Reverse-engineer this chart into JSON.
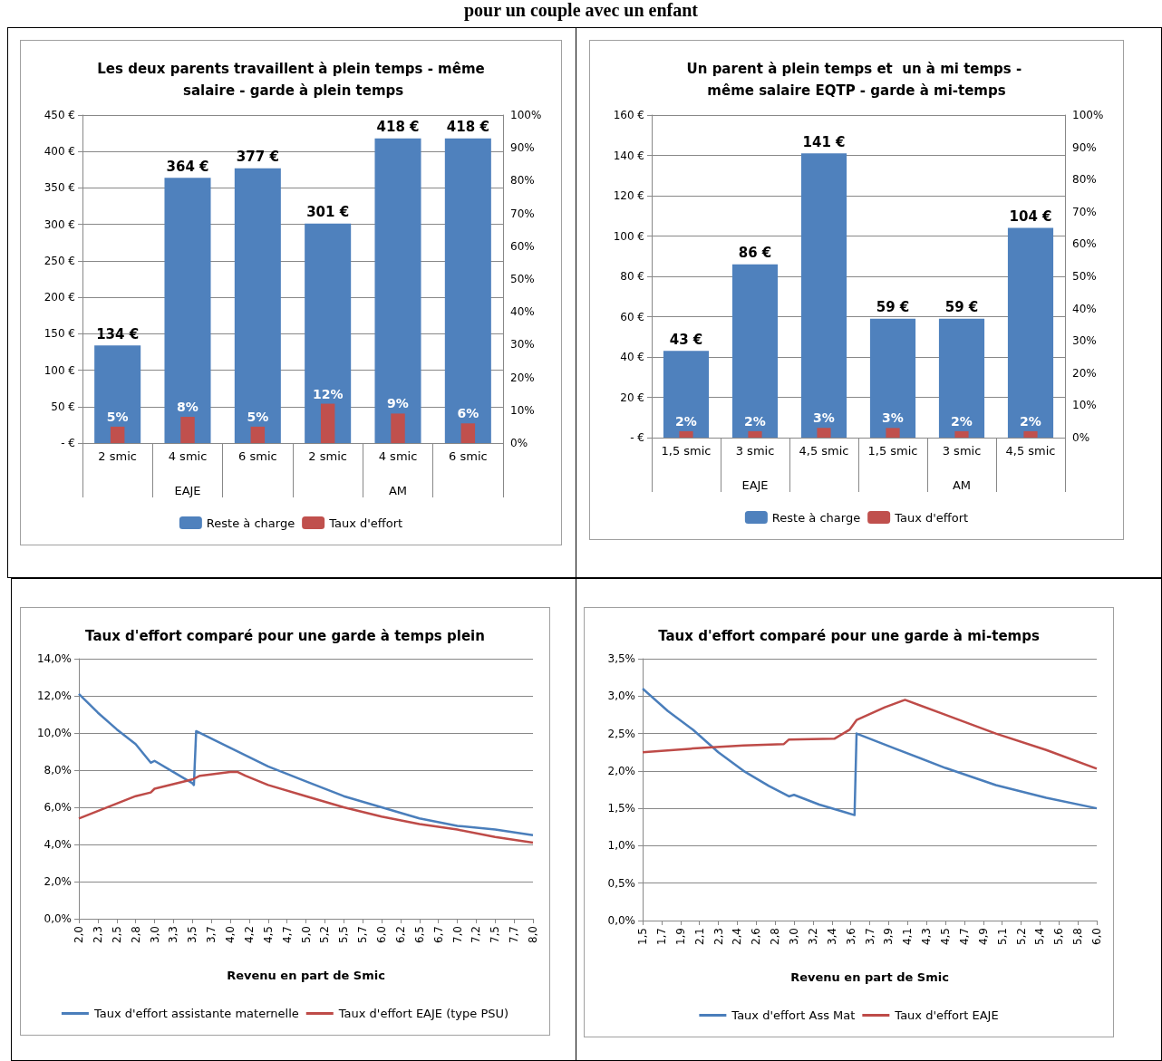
{
  "chart_data": [
    {
      "type": "other",
      "title": "pour un couple avec un enfant"
    },
    {
      "type": "bar",
      "title": "Les deux parents travaillent à plein temps - même salaire - garde à plein temps",
      "categories": [
        "2 smic",
        "4 smic",
        "6 smic",
        "2 smic",
        "4 smic",
        "6 smic"
      ],
      "annotations": [
        "EAJE",
        "AM"
      ],
      "series": [
        {
          "name": "Reste à charge",
          "color": "#4f81bd",
          "values": [
            134,
            364,
            377,
            301,
            418,
            418
          ],
          "value_labels": [
            "134 €",
            "364 €",
            "377 €",
            "301 €",
            "418 €",
            "418 €"
          ]
        },
        {
          "name": "Taux d'effort",
          "color": "#c0504d",
          "axis": "y2",
          "values": [
            5,
            8,
            5,
            12,
            9,
            6
          ],
          "value_labels": [
            "5%",
            "8%",
            "5%",
            "12%",
            "9%",
            "6%"
          ]
        }
      ],
      "ylim": [
        0,
        450
      ],
      "yticks": [
        {
          "value": 0,
          "label": "- €"
        },
        {
          "value": 50,
          "label": "50 €"
        },
        {
          "value": 100,
          "label": "100 €"
        },
        {
          "value": 150,
          "label": "150 €"
        },
        {
          "value": 200,
          "label": "200 €"
        },
        {
          "value": 250,
          "label": "250 €"
        },
        {
          "value": 300,
          "label": "300 €"
        },
        {
          "value": 350,
          "label": "350 €"
        },
        {
          "value": 400,
          "label": "400 €"
        },
        {
          "value": 450,
          "label": "450 €"
        }
      ],
      "y2lim": [
        0,
        100
      ],
      "y2ticks": [
        {
          "value": 0,
          "label": "0%"
        },
        {
          "value": 10,
          "label": "10%"
        },
        {
          "value": 20,
          "label": "20%"
        },
        {
          "value": 30,
          "label": "30%"
        },
        {
          "value": 40,
          "label": "40%"
        },
        {
          "value": 50,
          "label": "50%"
        },
        {
          "value": 60,
          "label": "60%"
        },
        {
          "value": 70,
          "label": "70%"
        },
        {
          "value": 80,
          "label": "80%"
        },
        {
          "value": 90,
          "label": "90%"
        },
        {
          "value": 100,
          "label": "100%"
        }
      ],
      "grid": "y",
      "legend": "bottom"
    },
    {
      "type": "bar",
      "title": "Un parent à plein temps et  un à mi temps - même salaire EQTP - garde à mi-temps",
      "categories": [
        "1,5 smic",
        "3 smic",
        "4,5 smic",
        "1,5 smic",
        "3 smic",
        "4,5 smic"
      ],
      "annotations": [
        "EAJE",
        "AM"
      ],
      "series": [
        {
          "name": "Reste à charge",
          "color": "#4f81bd",
          "values": [
            43,
            86,
            141,
            59,
            59,
            104
          ],
          "value_labels": [
            "43 €",
            "86 €",
            "141 €",
            "59 €",
            "59 €",
            "104 €"
          ]
        },
        {
          "name": "Taux d'effort",
          "color": "#c0504d",
          "axis": "y2",
          "values": [
            2,
            2,
            3,
            3,
            2,
            2
          ],
          "value_labels": [
            "2%",
            "2%",
            "3%",
            "3%",
            "2%",
            "2%"
          ]
        }
      ],
      "ylim": [
        0,
        160
      ],
      "yticks": [
        {
          "value": 0,
          "label": "- €"
        },
        {
          "value": 20,
          "label": "20 €"
        },
        {
          "value": 40,
          "label": "40 €"
        },
        {
          "value": 60,
          "label": "60 €"
        },
        {
          "value": 80,
          "label": "80 €"
        },
        {
          "value": 100,
          "label": "100 €"
        },
        {
          "value": 120,
          "label": "120 €"
        },
        {
          "value": 140,
          "label": "140 €"
        },
        {
          "value": 160,
          "label": "160 €"
        }
      ],
      "y2lim": [
        0,
        100
      ],
      "y2ticks": [
        {
          "value": 0,
          "label": "0%"
        },
        {
          "value": 10,
          "label": "10%"
        },
        {
          "value": 20,
          "label": "20%"
        },
        {
          "value": 30,
          "label": "30%"
        },
        {
          "value": 40,
          "label": "40%"
        },
        {
          "value": 50,
          "label": "50%"
        },
        {
          "value": 60,
          "label": "60%"
        },
        {
          "value": 70,
          "label": "70%"
        },
        {
          "value": 80,
          "label": "80%"
        },
        {
          "value": 90,
          "label": "90%"
        },
        {
          "value": 100,
          "label": "100%"
        }
      ],
      "grid": "y",
      "legend": "bottom"
    },
    {
      "type": "line",
      "title": "Taux d'effort comparé pour une garde à temps plein",
      "xlabel": "Revenu en part de Smic",
      "series": [
        {
          "name": "Taux d'effort assistante maternelle",
          "color": "#4a7ebb",
          "x": [
            2.0,
            2.25,
            2.5,
            2.75,
            2.95,
            3.0,
            3.25,
            3.5,
            3.52,
            3.55,
            4.0,
            4.5,
            5.0,
            5.5,
            6.0,
            6.5,
            7.0,
            7.5,
            8.0
          ],
          "values": [
            12.1,
            11.1,
            10.2,
            9.4,
            8.4,
            8.5,
            7.9,
            7.3,
            7.2,
            10.1,
            9.2,
            8.2,
            7.4,
            6.6,
            6.0,
            5.4,
            5.0,
            4.8,
            4.5
          ]
        },
        {
          "name": "Taux d'effort EAJE (type PSU)",
          "color": "#be4b48",
          "x": [
            2.0,
            2.5,
            2.75,
            2.95,
            3.0,
            3.5,
            3.6,
            4.0,
            4.1,
            4.2,
            4.5,
            5.0,
            5.5,
            6.0,
            6.5,
            7.0,
            7.5,
            8.0
          ],
          "values": [
            5.4,
            6.2,
            6.6,
            6.8,
            7.0,
            7.5,
            7.7,
            7.9,
            7.9,
            7.7,
            7.2,
            6.6,
            6.0,
            5.5,
            5.1,
            4.8,
            4.4,
            4.1
          ]
        }
      ],
      "xlim": [
        2,
        8
      ],
      "xticks": [
        {
          "value": 2,
          "label": "2,0"
        },
        {
          "value": 2.25,
          "label": "2,3"
        },
        {
          "value": 2.5,
          "label": "2,5"
        },
        {
          "value": 2.75,
          "label": "2,8"
        },
        {
          "value": 3,
          "label": "3,0"
        },
        {
          "value": 3.25,
          "label": "3,3"
        },
        {
          "value": 3.5,
          "label": "3,5"
        },
        {
          "value": 3.75,
          "label": "3,7"
        },
        {
          "value": 4,
          "label": "4,0"
        },
        {
          "value": 4.25,
          "label": "4,2"
        },
        {
          "value": 4.5,
          "label": "4,5"
        },
        {
          "value": 4.75,
          "label": "4,7"
        },
        {
          "value": 5,
          "label": "5,0"
        },
        {
          "value": 5.25,
          "label": "5,2"
        },
        {
          "value": 5.5,
          "label": "5,5"
        },
        {
          "value": 5.75,
          "label": "5,7"
        },
        {
          "value": 6,
          "label": "6,0"
        },
        {
          "value": 6.25,
          "label": "6,2"
        },
        {
          "value": 6.5,
          "label": "6,5"
        },
        {
          "value": 6.75,
          "label": "6,7"
        },
        {
          "value": 7,
          "label": "7,0"
        },
        {
          "value": 7.25,
          "label": "7,2"
        },
        {
          "value": 7.5,
          "label": "7,5"
        },
        {
          "value": 7.75,
          "label": "7,7"
        },
        {
          "value": 8,
          "label": "8,0"
        }
      ],
      "ylim": [
        0,
        14
      ],
      "yticks": [
        {
          "value": 0,
          "label": "0,0%"
        },
        {
          "value": 2,
          "label": "2,0%"
        },
        {
          "value": 4,
          "label": "4,0%"
        },
        {
          "value": 6,
          "label": "6,0%"
        },
        {
          "value": 8,
          "label": "8,0%"
        },
        {
          "value": 10,
          "label": "10,0%"
        },
        {
          "value": 12,
          "label": "12,0%"
        },
        {
          "value": 14,
          "label": "14,0%"
        }
      ],
      "grid": "y",
      "legend": "bottom",
      "marker": "none"
    },
    {
      "type": "line",
      "title": "Taux d'effort comparé pour une garde à mi-temps",
      "xlabel": "Revenu en part de Smic",
      "series": [
        {
          "name": "Taux d'effort Ass Mat",
          "color": "#4a7ebb",
          "x": [
            1.5,
            1.75,
            2.0,
            2.25,
            2.5,
            2.75,
            2.95,
            3.0,
            3.25,
            3.5,
            3.6,
            3.62,
            4.0,
            4.5,
            5.0,
            5.5,
            6.0
          ],
          "values": [
            3.1,
            2.8,
            2.55,
            2.25,
            2.0,
            1.8,
            1.66,
            1.68,
            1.55,
            1.45,
            1.41,
            2.5,
            2.3,
            2.04,
            1.81,
            1.64,
            1.5
          ]
        },
        {
          "name": "Taux d'effort EAJE",
          "color": "#be4b48",
          "x": [
            1.5,
            2.0,
            2.5,
            2.9,
            2.95,
            3.4,
            3.55,
            3.62,
            3.9,
            4.1,
            4.5,
            5.0,
            5.5,
            6.0
          ],
          "values": [
            2.25,
            2.3,
            2.34,
            2.36,
            2.42,
            2.43,
            2.55,
            2.68,
            2.85,
            2.95,
            2.75,
            2.5,
            2.28,
            2.03
          ]
        }
      ],
      "xlim": [
        1.5,
        6
      ],
      "xticks": [
        {
          "value": 1.5,
          "label": "1,5"
        },
        {
          "value": 1.6875,
          "label": "1,7"
        },
        {
          "value": 1.875,
          "label": "1,9"
        },
        {
          "value": 2.0625,
          "label": "2,1"
        },
        {
          "value": 2.25,
          "label": "2,3"
        },
        {
          "value": 2.4375,
          "label": "2,4"
        },
        {
          "value": 2.625,
          "label": "2,6"
        },
        {
          "value": 2.8125,
          "label": "2,8"
        },
        {
          "value": 3,
          "label": "3,0"
        },
        {
          "value": 3.1875,
          "label": "3,2"
        },
        {
          "value": 3.375,
          "label": "3,4"
        },
        {
          "value": 3.5625,
          "label": "3,6"
        },
        {
          "value": 3.75,
          "label": "3,7"
        },
        {
          "value": 3.9375,
          "label": "3,9"
        },
        {
          "value": 4.125,
          "label": "4,1"
        },
        {
          "value": 4.3125,
          "label": "4,3"
        },
        {
          "value": 4.5,
          "label": "4,5"
        },
        {
          "value": 4.6875,
          "label": "4,7"
        },
        {
          "value": 4.875,
          "label": "4,9"
        },
        {
          "value": 5.0625,
          "label": "5,1"
        },
        {
          "value": 5.25,
          "label": "5,2"
        },
        {
          "value": 5.4375,
          "label": "5,4"
        },
        {
          "value": 5.625,
          "label": "5,6"
        },
        {
          "value": 5.8125,
          "label": "5,8"
        },
        {
          "value": 6,
          "label": "6,0"
        }
      ],
      "ylim": [
        0,
        3.5
      ],
      "yticks": [
        {
          "value": 0,
          "label": "0,0%"
        },
        {
          "value": 0.5,
          "label": "0,5%"
        },
        {
          "value": 1,
          "label": "1,0%"
        },
        {
          "value": 1.5,
          "label": "1,5%"
        },
        {
          "value": 2,
          "label": "2,0%"
        },
        {
          "value": 2.5,
          "label": "2,5%"
        },
        {
          "value": 3,
          "label": "3,0%"
        },
        {
          "value": 3.5,
          "label": "3,5%"
        }
      ],
      "grid": "y",
      "legend": "bottom",
      "marker": "none"
    }
  ]
}
